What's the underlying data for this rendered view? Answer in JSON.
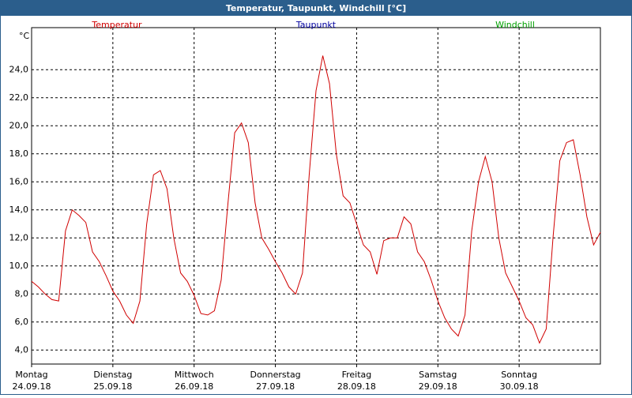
{
  "chart_data": {
    "type": "line",
    "title": "Temperatur, Taupunkt, Windchill [°C]",
    "y_label": "°C",
    "series": [
      {
        "name": "Temperatur",
        "color": "#d00000",
        "values": [
          8.9,
          8.5,
          8.0,
          7.6,
          7.5,
          12.5,
          14.0,
          13.6,
          13.1,
          11.0,
          10.3,
          9.3,
          8.2,
          7.5,
          6.5,
          5.9,
          7.5,
          13.0,
          16.5,
          16.8,
          15.5,
          12.0,
          9.5,
          8.9,
          7.9,
          6.6,
          6.5,
          6.8,
          9.0,
          14.5,
          19.5,
          20.2,
          18.8,
          14.5,
          12.0,
          11.2,
          10.3,
          9.5,
          8.5,
          8.0,
          9.5,
          16.5,
          22.5,
          25.0,
          23.0,
          18.0,
          15.0,
          14.5,
          13.0,
          11.5,
          11.0,
          9.4,
          11.8,
          12.0,
          12.0,
          13.5,
          13.0,
          11.0,
          10.3,
          9.0,
          7.5,
          6.3,
          5.5,
          5.0,
          6.5,
          12.5,
          16.0,
          17.8,
          16.0,
          12.0,
          9.5,
          8.5,
          7.5,
          6.3,
          5.8,
          4.5,
          5.5,
          12.0,
          17.5,
          18.8,
          19.0,
          16.5,
          13.5,
          11.5,
          12.4
        ]
      }
    ],
    "other_series": [
      {
        "name": "Taupunkt",
        "color": "#0000a0"
      },
      {
        "name": "Windchill",
        "color": "#00a000"
      }
    ],
    "days": [
      {
        "day": "Montag",
        "date": "24.09.18"
      },
      {
        "day": "Dienstag",
        "date": "25.09.18"
      },
      {
        "day": "Mittwoch",
        "date": "26.09.18"
      },
      {
        "day": "Donnerstag",
        "date": "27.09.18"
      },
      {
        "day": "Freitag",
        "date": "28.09.18"
      },
      {
        "day": "Samstag",
        "date": "29.09.18"
      },
      {
        "day": "Sonntag",
        "date": "30.09.18"
      }
    ],
    "ylim": [
      3,
      27
    ],
    "yticks": [
      {
        "value": 4,
        "label": "4,0"
      },
      {
        "value": 6,
        "label": "6,0"
      },
      {
        "value": 8,
        "label": "8,0"
      },
      {
        "value": 10,
        "label": "10,0"
      },
      {
        "value": 12,
        "label": "12,0"
      },
      {
        "value": 14,
        "label": "14,0"
      },
      {
        "value": 16,
        "label": "16,0"
      },
      {
        "value": 18,
        "label": "18,0"
      },
      {
        "value": 20,
        "label": "20,0"
      },
      {
        "value": 22,
        "label": "22,0"
      },
      {
        "value": 24,
        "label": "24,0"
      }
    ],
    "grid": true
  }
}
